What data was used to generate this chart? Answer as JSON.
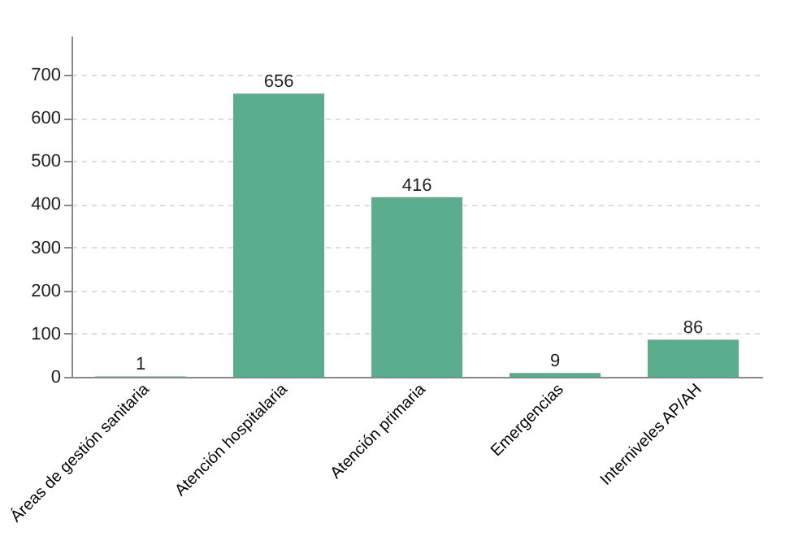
{
  "chart_data": {
    "type": "bar",
    "categories": [
      "Áreas de gestión sanitaria",
      "Atención hospitalaria",
      "Atención primaria",
      "Emergencias",
      "Interniveles AP/AH"
    ],
    "values": [
      1,
      656,
      416,
      9,
      86
    ],
    "color": "#5aae8e",
    "ylim": [
      0,
      790
    ],
    "yticks": [
      0,
      100,
      200,
      300,
      400,
      500,
      600,
      700
    ],
    "grid": "y",
    "data_labels": true
  }
}
